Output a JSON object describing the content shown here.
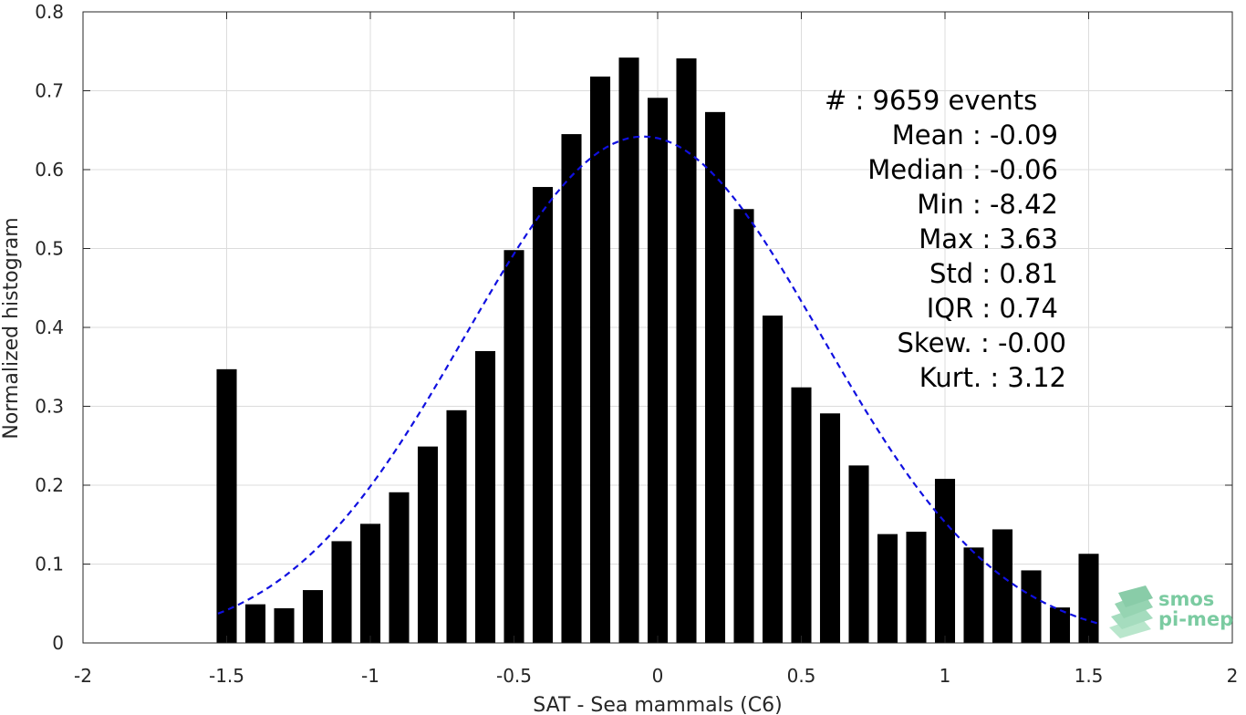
{
  "chart_data": {
    "type": "bar",
    "xlabel": "SAT - Sea mammals (C6)",
    "ylabel": "Normalized histogram",
    "xlim": [
      -2,
      2
    ],
    "ylim": [
      0,
      0.8
    ],
    "xticks": [
      -2,
      -1.5,
      -1,
      -0.5,
      0,
      0.5,
      1,
      1.5,
      2
    ],
    "xtick_labels": [
      "-2",
      "-1.5",
      "-1",
      "-0.5",
      "0",
      "0.5",
      "1",
      "1.5",
      "2"
    ],
    "yticks": [
      0,
      0.1,
      0.2,
      0.3,
      0.4,
      0.5,
      0.6,
      0.7,
      0.8
    ],
    "ytick_labels": [
      "0",
      "0.1",
      "0.2",
      "0.3",
      "0.4",
      "0.5",
      "0.6",
      "0.7",
      "0.8"
    ],
    "grid": true,
    "bar_color": "#000000",
    "bar_width": 0.07,
    "x": [
      -1.5,
      -1.4,
      -1.3,
      -1.2,
      -1.1,
      -1.0,
      -0.9,
      -0.8,
      -0.7,
      -0.6,
      -0.5,
      -0.4,
      -0.3,
      -0.2,
      -0.1,
      0.0,
      0.1,
      0.2,
      0.3,
      0.4,
      0.5,
      0.6,
      0.7,
      0.8,
      0.9,
      1.0,
      1.1,
      1.2,
      1.3,
      1.4,
      1.5
    ],
    "values": [
      0.347,
      0.049,
      0.044,
      0.067,
      0.129,
      0.151,
      0.191,
      0.249,
      0.295,
      0.37,
      0.498,
      0.578,
      0.645,
      0.718,
      0.742,
      0.691,
      0.741,
      0.673,
      0.55,
      0.415,
      0.324,
      0.291,
      0.225,
      0.138,
      0.141,
      0.208,
      0.121,
      0.144,
      0.092,
      0.045,
      0.113
    ],
    "fit_curve": {
      "style": "dashed",
      "color": "#1010e0",
      "mean": -0.05,
      "std": 0.62,
      "x_range": [
        -1.53,
        1.53
      ]
    },
    "stats": [
      "#  : 9659 events",
      "Mean : -0.09",
      "Median : -0.06",
      "Min : -8.42",
      "Max : 3.63",
      "Std : 0.81",
      "IQR : 0.74",
      "Skew. : -0.00",
      "Kurt. : 3.12"
    ]
  },
  "logo": {
    "line1": "smos",
    "line2": "pi-mep",
    "color": "#5bbf8a"
  }
}
